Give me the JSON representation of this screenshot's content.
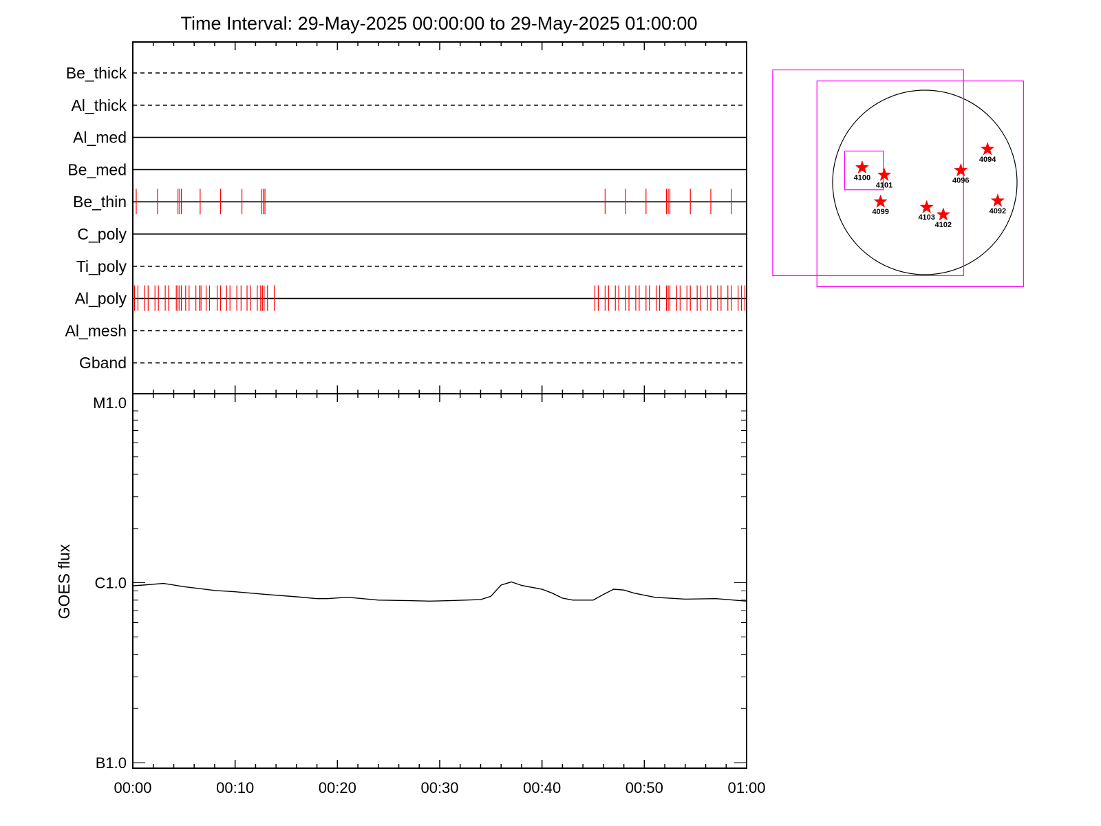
{
  "colors": {
    "axis": "#000000",
    "events": "#ff0000",
    "fov": "#ff00ff",
    "disk": "#000000"
  },
  "chart_data": [
    {
      "type": "timeline",
      "title": "Time Interval: 29-May-2025 00:00:00 to 29-May-2025 01:00:00",
      "x_range": [
        "00:00",
        "01:00"
      ],
      "rows": [
        {
          "label": "Be_thick",
          "style": "dashed",
          "events": []
        },
        {
          "label": "Al_thick",
          "style": "dashed",
          "events": []
        },
        {
          "label": "Al_med",
          "style": "solid",
          "events": []
        },
        {
          "label": "Be_med",
          "style": "solid",
          "events": []
        },
        {
          "label": "Be_thin",
          "style": "solid",
          "events": [
            "00:00:20",
            "00:02:25",
            "00:04:25",
            "00:04:35",
            "00:04:45",
            "00:06:35",
            "00:08:35",
            "00:10:40",
            "00:12:35",
            "00:12:45",
            "00:12:55",
            "00:46:10",
            "00:48:10",
            "00:50:10",
            "00:52:10",
            "00:52:20",
            "00:52:30",
            "00:54:30",
            "00:56:30",
            "00:58:30"
          ]
        },
        {
          "label": "C_poly",
          "style": "solid",
          "events": []
        },
        {
          "label": "Ti_poly",
          "style": "dashed",
          "events": []
        },
        {
          "label": "Al_poly",
          "style": "solid",
          "events": [
            "00:00:10",
            "00:00:30",
            "00:01:10",
            "00:01:30",
            "00:02:10",
            "00:02:30",
            "00:03:10",
            "00:03:30",
            "00:04:15",
            "00:04:25",
            "00:04:35",
            "00:04:45",
            "00:05:10",
            "00:05:30",
            "00:06:10",
            "00:06:30",
            "00:06:40",
            "00:07:10",
            "00:07:30",
            "00:08:15",
            "00:08:35",
            "00:09:10",
            "00:09:30",
            "00:10:10",
            "00:10:35",
            "00:11:10",
            "00:11:30",
            "00:12:10",
            "00:12:30",
            "00:12:40",
            "00:12:50",
            "00:13:10",
            "00:13:50",
            "00:45:10",
            "00:45:30",
            "00:46:10",
            "00:46:30",
            "00:47:10",
            "00:47:30",
            "00:48:10",
            "00:48:30",
            "00:49:10",
            "00:49:30",
            "00:50:10",
            "00:50:30",
            "00:51:10",
            "00:51:30",
            "00:52:10",
            "00:52:20",
            "00:52:30",
            "00:53:10",
            "00:53:30",
            "00:54:10",
            "00:54:30",
            "00:55:10",
            "00:55:30",
            "00:56:10",
            "00:56:30",
            "00:57:10",
            "00:57:30",
            "00:58:10",
            "00:58:30",
            "00:59:10",
            "00:59:30",
            "00:59:50"
          ]
        },
        {
          "label": "Al_mesh",
          "style": "dashed",
          "events": []
        },
        {
          "label": "Gband",
          "style": "dashed",
          "events": []
        }
      ]
    },
    {
      "type": "line",
      "ylabel": "GOES flux",
      "yscale": "log",
      "ylim": [
        1e-07,
        1e-05
      ],
      "yticks": [
        {
          "value": 1e-05,
          "label": "M1.0"
        },
        {
          "value": 1e-06,
          "label": "C1.0"
        },
        {
          "value": 1e-07,
          "label": "B1.0"
        }
      ],
      "xticks": [
        "00:00",
        "00:10",
        "00:20",
        "00:30",
        "00:40",
        "00:50",
        "01:00"
      ],
      "series": [
        {
          "x": [
            "00:00",
            "00:01",
            "00:03",
            "00:05",
            "00:08",
            "00:10",
            "00:13",
            "00:16",
            "00:18",
            "00:19",
            "00:21",
            "00:24",
            "00:27",
            "00:29",
            "00:31",
            "00:34",
            "00:35",
            "00:36",
            "00:37",
            "00:38",
            "00:40",
            "00:41",
            "00:42",
            "00:43",
            "00:45",
            "00:46",
            "00:47",
            "00:48",
            "00:49",
            "00:51",
            "00:54",
            "00:57",
            "01:00"
          ],
          "y": [
            9.6e-07,
            9.7e-07,
            9.9e-07,
            9.5e-07,
            9.05e-07,
            8.9e-07,
            8.6e-07,
            8.35e-07,
            8.15e-07,
            8.15e-07,
            8.3e-07,
            8e-07,
            7.95e-07,
            7.9e-07,
            7.95e-07,
            8.05e-07,
            8.4e-07,
            9.7e-07,
            1.01e-06,
            9.65e-07,
            9.2e-07,
            8.75e-07,
            8.2e-07,
            8e-07,
            8e-07,
            8.6e-07,
            9.2e-07,
            9.1e-07,
            8.75e-07,
            8.3e-07,
            8.1e-07,
            8.15e-07,
            7.9e-07
          ]
        }
      ]
    },
    {
      "type": "scatter",
      "description_units": "solar disk, arcsec-like positions relative to disk center (radius = 1)",
      "regions": [
        {
          "label": "4094",
          "x": 0.68,
          "y": 0.36
        },
        {
          "label": "4096",
          "x": 0.39,
          "y": 0.13
        },
        {
          "label": "4100",
          "x": -0.68,
          "y": 0.16
        },
        {
          "label": "4101",
          "x": -0.44,
          "y": 0.08
        },
        {
          "label": "4099",
          "x": -0.48,
          "y": -0.21
        },
        {
          "label": "4103",
          "x": 0.02,
          "y": -0.27
        },
        {
          "label": "4102",
          "x": 0.2,
          "y": -0.35
        },
        {
          "label": "4092",
          "x": 0.79,
          "y": -0.2
        }
      ],
      "fov_boxes": [
        {
          "x0": -1.65,
          "y0": -1.01,
          "x1": 0.42,
          "y1": 1.22
        },
        {
          "x0": -1.17,
          "y0": -1.13,
          "x1": 1.07,
          "y1": 1.1
        },
        {
          "x0": -0.87,
          "y0": -0.08,
          "x1": -0.45,
          "y1": 0.34
        }
      ]
    }
  ]
}
